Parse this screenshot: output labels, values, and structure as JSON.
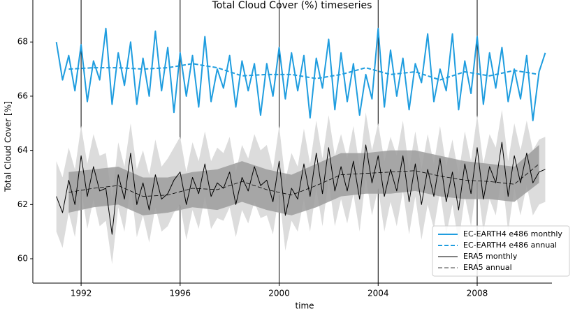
{
  "chart_data": {
    "type": "line",
    "title": "Total Cloud Cover (%) timeseries",
    "xlabel": "time",
    "ylabel": "Total Cloud Cover [%]",
    "xlim": [
      1990.05,
      2011.02
    ],
    "xticks": [
      1992,
      1996,
      2000,
      2004,
      2008
    ],
    "ylim": [
      59.1,
      69.55
    ],
    "yticks": [
      60,
      62,
      64,
      66,
      68
    ],
    "grid": "x",
    "legend": "lower right",
    "bands": [
      {
        "color": "#dcdcdc",
        "x": [
          1991,
          1991.25,
          1991.5,
          1991.75,
          1992,
          1992.25,
          1992.5,
          1992.75,
          1993,
          1993.25,
          1993.5,
          1993.75,
          1994,
          1994.25,
          1994.5,
          1994.75,
          1995,
          1995.25,
          1995.5,
          1995.75,
          1996,
          1996.25,
          1996.5,
          1996.75,
          1997,
          1997.25,
          1997.5,
          1997.75,
          1998,
          1998.25,
          1998.5,
          1998.75,
          1999,
          1999.25,
          1999.5,
          1999.75,
          2000,
          2000.25,
          2000.5,
          2000.75,
          2001,
          2001.25,
          2001.5,
          2001.75,
          2002,
          2002.25,
          2002.5,
          2002.75,
          2003,
          2003.25,
          2003.5,
          2003.75,
          2004,
          2004.25,
          2004.5,
          2004.75,
          2005,
          2005.25,
          2005.5,
          2005.75,
          2006,
          2006.25,
          2006.5,
          2006.75,
          2007,
          2007.25,
          2007.5,
          2007.75,
          2008,
          2008.25,
          2008.5,
          2008.75,
          2009,
          2009.25,
          2009.5,
          2009.75,
          2010,
          2010.25,
          2010.5,
          2010.75
        ],
        "upper": [
          63.6,
          63.0,
          64.1,
          63.3,
          64.9,
          63.5,
          64.6,
          63.8,
          63.9,
          62.2,
          64.3,
          63.4,
          65.0,
          63.3,
          64.0,
          63.1,
          64.4,
          63.4,
          63.7,
          64.1,
          64.5,
          63.2,
          64.3,
          63.6,
          64.7,
          63.6,
          64.1,
          63.9,
          64.5,
          63.2,
          64.2,
          63.7,
          64.6,
          64.0,
          64.2,
          63.3,
          64.9,
          62.9,
          63.9,
          63.4,
          64.8,
          63.5,
          65.1,
          63.7,
          65.3,
          63.8,
          64.6,
          63.7,
          64.9,
          63.4,
          65.4,
          64.0,
          65.0,
          63.6,
          64.5,
          63.8,
          65.1,
          63.3,
          64.7,
          63.3,
          64.6,
          63.5,
          64.9,
          63.4,
          64.4,
          63.1,
          64.7,
          63.6,
          65.3,
          63.5,
          64.6,
          64.1,
          65.5,
          63.6,
          65.0,
          64.0,
          65.1,
          64.0,
          64.4,
          64.5
        ],
        "lower": [
          61.0,
          60.4,
          61.7,
          60.8,
          62.6,
          61.1,
          62.2,
          61.2,
          61.4,
          59.8,
          61.9,
          61.0,
          62.7,
          60.8,
          61.6,
          60.6,
          61.9,
          61.0,
          61.2,
          61.7,
          62.0,
          60.7,
          61.8,
          61.1,
          62.3,
          61.1,
          61.5,
          61.4,
          61.9,
          60.8,
          61.8,
          61.3,
          62.1,
          61.5,
          61.6,
          60.9,
          62.4,
          60.3,
          61.4,
          61.0,
          62.2,
          61.0,
          62.6,
          61.2,
          62.9,
          61.2,
          62.2,
          61.3,
          62.4,
          61.0,
          63.0,
          61.6,
          62.6,
          61.0,
          62.1,
          61.2,
          62.5,
          60.9,
          62.3,
          60.7,
          62.0,
          61.1,
          62.5,
          60.9,
          62.0,
          60.6,
          62.3,
          61.2,
          62.9,
          61.0,
          62.2,
          61.6,
          63.1,
          61.0,
          62.6,
          61.6,
          62.7,
          61.6,
          62.0,
          62.1
        ]
      },
      {
        "color": "#9c9c9c",
        "x": [
          1991.5,
          1992.5,
          1993.5,
          1994.5,
          1995.5,
          1996.5,
          1997.5,
          1998.5,
          1999.5,
          2000.5,
          2001.5,
          2002.5,
          2003.5,
          2004.5,
          2005.5,
          2006.5,
          2007.5,
          2008.5,
          2009.5,
          2010.5
        ],
        "upper": [
          63.2,
          63.3,
          63.4,
          63.0,
          63.0,
          63.2,
          63.3,
          63.6,
          63.3,
          63.1,
          63.5,
          63.9,
          63.9,
          64.0,
          64.0,
          63.8,
          63.6,
          63.5,
          63.4,
          64.2
        ],
        "lower": [
          61.7,
          61.9,
          62.0,
          61.6,
          61.7,
          61.9,
          61.8,
          62.1,
          61.8,
          61.6,
          61.9,
          62.3,
          62.4,
          62.4,
          62.5,
          62.3,
          62.2,
          62.2,
          62.1,
          62.8
        ]
      }
    ],
    "series": [
      {
        "name": "EC-EARTH4 e486 monthly",
        "color": "#1f9ddf",
        "dash": "solid",
        "width": 2,
        "x": [
          1991,
          1991.25,
          1991.5,
          1991.75,
          1992,
          1992.25,
          1992.5,
          1992.75,
          1993,
          1993.25,
          1993.5,
          1993.75,
          1994,
          1994.25,
          1994.5,
          1994.75,
          1995,
          1995.25,
          1995.5,
          1995.75,
          1996,
          1996.25,
          1996.5,
          1996.75,
          1997,
          1997.25,
          1997.5,
          1997.75,
          1998,
          1998.25,
          1998.5,
          1998.75,
          1999,
          1999.25,
          1999.5,
          1999.75,
          2000,
          2000.25,
          2000.5,
          2000.75,
          2001,
          2001.25,
          2001.5,
          2001.75,
          2002,
          2002.25,
          2002.5,
          2002.75,
          2003,
          2003.25,
          2003.5,
          2003.75,
          2004,
          2004.25,
          2004.5,
          2004.75,
          2005,
          2005.25,
          2005.5,
          2005.75,
          2006,
          2006.25,
          2006.5,
          2006.75,
          2007,
          2007.25,
          2007.5,
          2007.75,
          2008,
          2008.25,
          2008.5,
          2008.75,
          2009,
          2009.25,
          2009.5,
          2009.75,
          2010,
          2010.25,
          2010.5,
          2010.75
        ],
        "values": [
          68.0,
          66.6,
          67.5,
          66.2,
          67.9,
          65.8,
          67.3,
          66.6,
          68.5,
          65.7,
          67.6,
          66.4,
          68.0,
          65.7,
          67.4,
          66.0,
          68.4,
          66.2,
          67.8,
          65.4,
          67.6,
          66.0,
          67.5,
          65.6,
          68.2,
          65.8,
          67.0,
          66.3,
          67.5,
          65.6,
          67.3,
          66.2,
          67.2,
          65.3,
          67.2,
          66.0,
          67.8,
          65.9,
          67.6,
          66.2,
          67.5,
          65.2,
          67.4,
          66.3,
          68.1,
          65.5,
          67.6,
          65.8,
          67.2,
          65.3,
          66.8,
          65.9,
          68.5,
          65.6,
          67.7,
          66.0,
          67.4,
          65.5,
          67.2,
          66.5,
          68.3,
          65.8,
          67.0,
          66.2,
          68.3,
          65.5,
          67.3,
          66.1,
          68.2,
          65.7,
          67.6,
          66.3,
          67.8,
          65.8,
          67.0,
          65.9,
          67.5,
          65.1,
          66.9,
          67.6
        ]
      },
      {
        "name": "EC-EARTH4 e486 annual",
        "color": "#1f9ddf",
        "dash": "dashed",
        "width": 2,
        "x": [
          1991.5,
          1992.5,
          1993.5,
          1994.5,
          1995.5,
          1996.5,
          1997.5,
          1998.5,
          1999.5,
          2000.5,
          2001.5,
          2002.5,
          2003.5,
          2004.5,
          2005.5,
          2006.5,
          2007.5,
          2008.5,
          2009.5,
          2010.5
        ],
        "values": [
          67.0,
          67.05,
          67.05,
          67.0,
          67.05,
          67.2,
          67.05,
          66.75,
          66.8,
          66.8,
          66.65,
          66.8,
          67.05,
          66.8,
          66.9,
          66.6,
          66.9,
          66.75,
          66.95,
          66.8
        ]
      },
      {
        "name": "ERA5 monthly",
        "color": "#000000",
        "dash": "solid",
        "width": 1,
        "x": [
          1991,
          1991.25,
          1991.5,
          1991.75,
          1992,
          1992.25,
          1992.5,
          1992.75,
          1993,
          1993.25,
          1993.5,
          1993.75,
          1994,
          1994.25,
          1994.5,
          1994.75,
          1995,
          1995.25,
          1995.5,
          1995.75,
          1996,
          1996.25,
          1996.5,
          1996.75,
          1997,
          1997.25,
          1997.5,
          1997.75,
          1998,
          1998.25,
          1998.5,
          1998.75,
          1999,
          1999.25,
          1999.5,
          1999.75,
          2000,
          2000.25,
          2000.5,
          2000.75,
          2001,
          2001.25,
          2001.5,
          2001.75,
          2002,
          2002.25,
          2002.5,
          2002.75,
          2003,
          2003.25,
          2003.5,
          2003.75,
          2004,
          2004.25,
          2004.5,
          2004.75,
          2005,
          2005.25,
          2005.5,
          2005.75,
          2006,
          2006.25,
          2006.5,
          2006.75,
          2007,
          2007.25,
          2007.5,
          2007.75,
          2008,
          2008.25,
          2008.5,
          2008.75,
          2009,
          2009.25,
          2009.5,
          2009.75,
          2010,
          2010.25,
          2010.5,
          2010.75
        ],
        "values": [
          62.3,
          61.7,
          62.9,
          62.0,
          63.8,
          62.3,
          63.4,
          62.5,
          62.6,
          60.9,
          63.1,
          62.2,
          63.9,
          62.0,
          62.8,
          61.8,
          63.1,
          62.2,
          62.4,
          62.9,
          63.2,
          62.0,
          63.0,
          62.4,
          63.5,
          62.3,
          62.8,
          62.6,
          63.2,
          62.0,
          63.0,
          62.5,
          63.4,
          62.7,
          62.9,
          62.1,
          63.6,
          61.6,
          62.6,
          62.2,
          63.5,
          62.3,
          63.9,
          62.4,
          64.1,
          62.5,
          63.4,
          62.5,
          63.6,
          62.2,
          64.2,
          62.8,
          63.8,
          62.3,
          63.3,
          62.5,
          63.8,
          62.1,
          63.5,
          62.0,
          63.3,
          62.3,
          63.7,
          62.1,
          63.2,
          61.8,
          63.5,
          62.4,
          64.1,
          62.2,
          63.4,
          62.8,
          64.3,
          62.3,
          63.8,
          62.8,
          63.9,
          62.8,
          63.2,
          63.3
        ]
      },
      {
        "name": "ERA5 annual",
        "color": "#000000",
        "dash": "dashed",
        "width": 0.8,
        "x": [
          1991.5,
          1992.5,
          1993.5,
          1994.5,
          1995.5,
          1996.5,
          1997.5,
          1998.5,
          1999.5,
          2000.5,
          2001.5,
          2002.5,
          2003.5,
          2004.5,
          2005.5,
          2006.5,
          2007.5,
          2008.5,
          2009.5,
          2010.5
        ],
        "values": [
          62.45,
          62.6,
          62.7,
          62.3,
          62.35,
          62.6,
          62.55,
          62.85,
          62.55,
          62.35,
          62.7,
          63.1,
          63.15,
          63.2,
          63.25,
          63.05,
          62.9,
          62.85,
          62.75,
          63.5
        ]
      }
    ]
  }
}
